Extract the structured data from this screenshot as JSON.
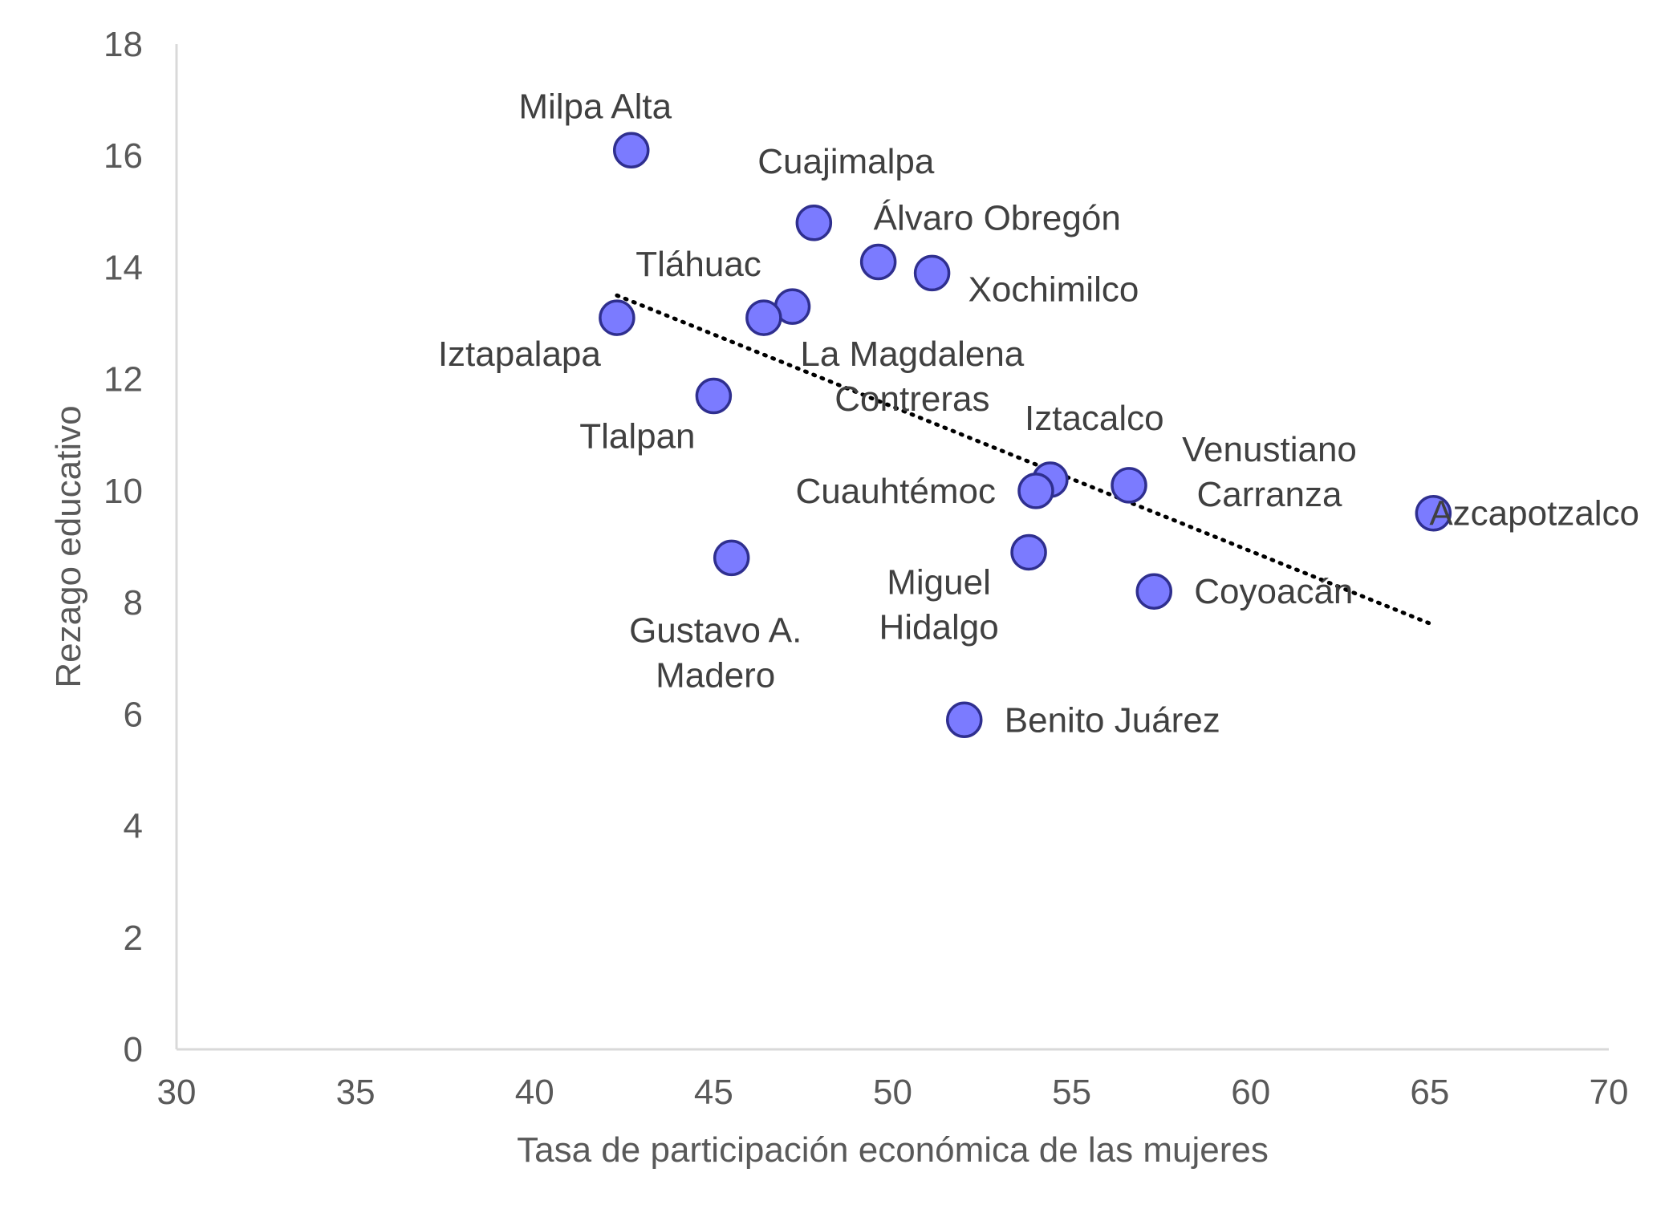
{
  "chart_data": {
    "type": "scatter",
    "xlabel": "Tasa de participación económica de las mujeres",
    "ylabel": "Rezago educativo",
    "xlim": [
      30,
      70
    ],
    "ylim": [
      0,
      18
    ],
    "x_ticks": [
      "30",
      "35",
      "40",
      "45",
      "50",
      "55",
      "60",
      "65",
      "70"
    ],
    "y_ticks": [
      "0",
      "2",
      "4",
      "6",
      "8",
      "10",
      "12",
      "14",
      "16",
      "18"
    ],
    "grid": false,
    "legend": "none",
    "marker_color": "#7b7bff",
    "marker_edge_color": "#2f2f8f",
    "points": [
      {
        "label": "Milpa Alta",
        "x": 42.7,
        "y": 16.1
      },
      {
        "label": "Cuajimalpa",
        "x": 47.8,
        "y": 14.8
      },
      {
        "label": "Álvaro Obregón",
        "x": 49.6,
        "y": 14.1
      },
      {
        "label": "Xochimilco",
        "x": 51.1,
        "y": 13.9
      },
      {
        "label": "Tláhuac",
        "x": 47.2,
        "y": 13.3
      },
      {
        "label": "La Magdalena Contreras",
        "x": 46.4,
        "y": 13.1
      },
      {
        "label": "Iztapalapa",
        "x": 42.3,
        "y": 13.1
      },
      {
        "label": "Tlalpan",
        "x": 45.0,
        "y": 11.7
      },
      {
        "label": "Iztacalco",
        "x": 54.4,
        "y": 10.2
      },
      {
        "label": "Cuauhtémoc",
        "x": 54.0,
        "y": 10.0
      },
      {
        "label": "Venustiano Carranza",
        "x": 56.6,
        "y": 10.1
      },
      {
        "label": "Azcapotzalco",
        "x": 65.1,
        "y": 9.6
      },
      {
        "label": "Miguel Hidalgo",
        "x": 53.8,
        "y": 8.9
      },
      {
        "label": "Gustavo A. Madero",
        "x": 45.5,
        "y": 8.8
      },
      {
        "label": "Coyoacán",
        "x": 57.3,
        "y": 8.2
      },
      {
        "label": "Benito Juárez",
        "x": 52.0,
        "y": 5.9
      }
    ],
    "trendline": {
      "style": "dotted",
      "color": "#000000",
      "x": [
        42.3,
        65.1
      ],
      "y": [
        13.5,
        7.6
      ]
    }
  }
}
